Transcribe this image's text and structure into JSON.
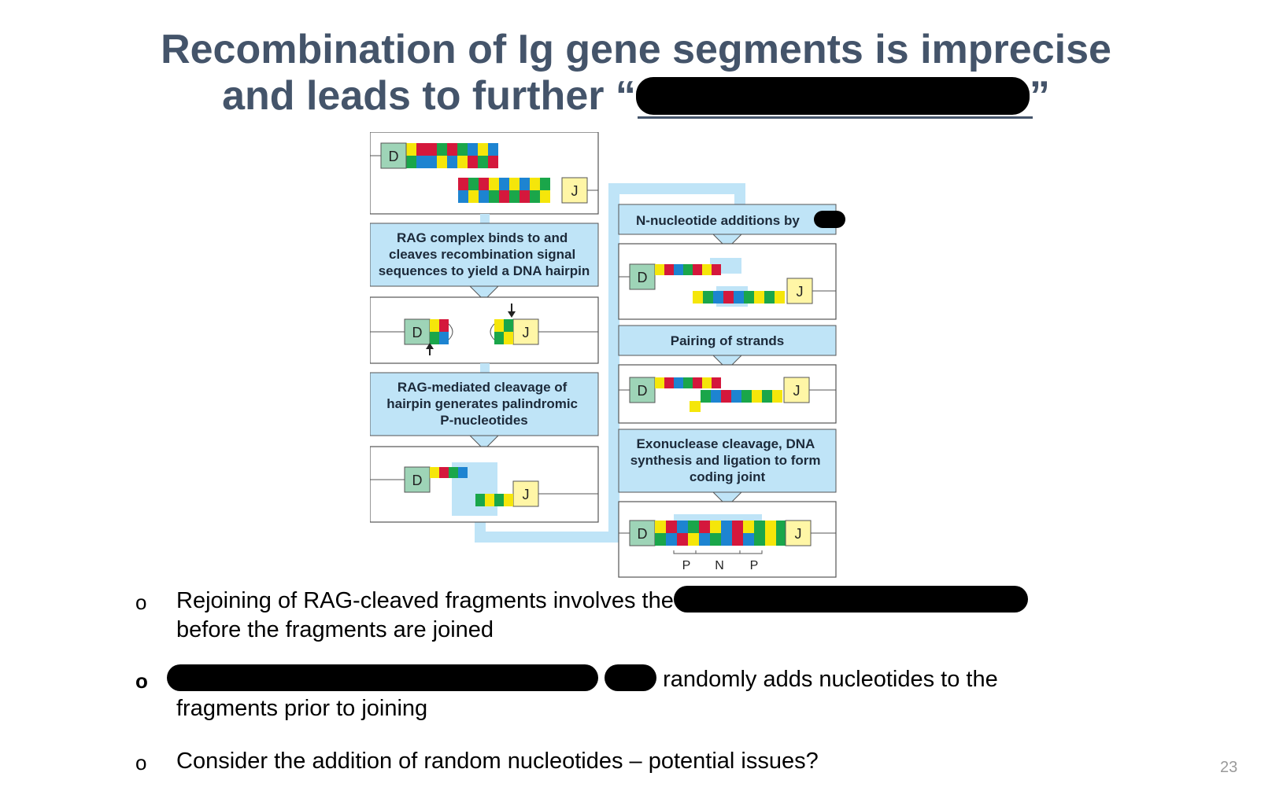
{
  "slide": {
    "title_line1": "Recombination of Ig gene segments is imprecise",
    "title_line2_pre": "and leads to further “",
    "title_line2_post": "”",
    "page_number": "23"
  },
  "figure": {
    "seg_d": "D",
    "seg_j": "J",
    "step1": [
      "RAG complex binds to and",
      "cleaves recombination signal",
      "sequences to yield a DNA hairpin"
    ],
    "step2": [
      "RAG-mediated cleavage of",
      "hairpin generates palindromic",
      "P-nucleotides"
    ],
    "step3": "N-nucleotide additions by",
    "step4": "Pairing of strands",
    "step5": [
      "Exonuclease cleavage, DNA",
      "synthesis and ligation to form",
      "coding joint"
    ],
    "pnp": [
      "P",
      "N",
      "P"
    ],
    "nuc_colors": {
      "T": "#f5e60a",
      "C": "#d4183c",
      "A": "#1aa64a",
      "G": "#1d84d1"
    }
  },
  "bullets": [
    {
      "marker": "o",
      "text_a": "Rejoining of RAG-cleaved fragments involves the",
      "text_b": "before the fragments are joined"
    },
    {
      "marker": "o",
      "text_a": "randomly adds nucleotides to the",
      "text_b": "fragments prior to joining"
    },
    {
      "marker": "o",
      "text_a": "Consider the addition of random nucleotides – potential issues?"
    }
  ]
}
